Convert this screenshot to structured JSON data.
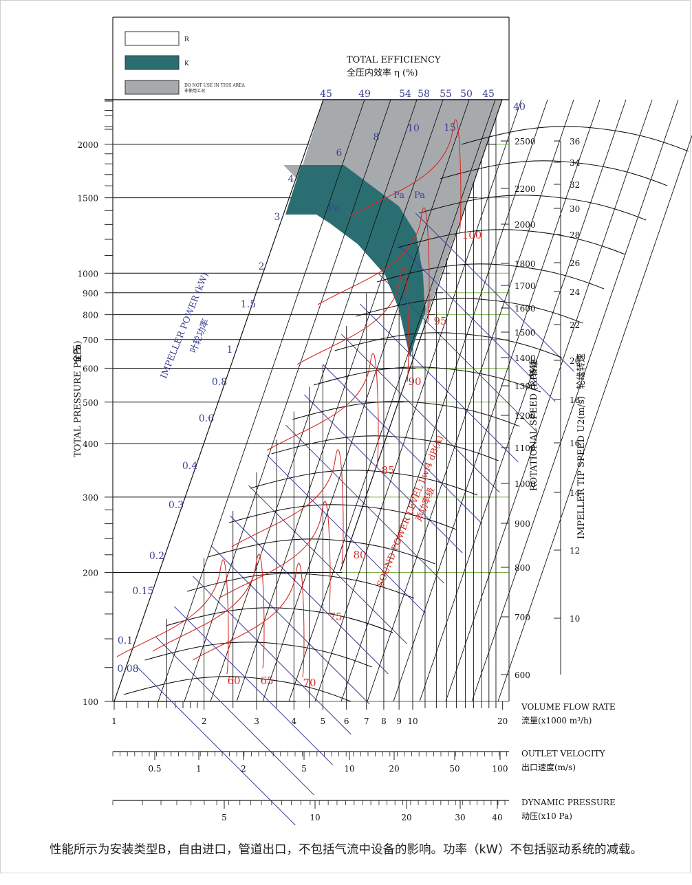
{
  "chart_data": {
    "type": "fan-performance-chart",
    "legend": [
      {
        "key": "R",
        "color": "#ffffff"
      },
      {
        "key": "K",
        "color": "#2b6e72"
      },
      {
        "key": "DO NOT USE IN THIS AREA",
        "sub": "非使用工况",
        "color": "#a7aaad"
      }
    ],
    "efficiency_title": "TOTAL EFFICIENCY",
    "efficiency_title_cn": "全压内效率 η (%)",
    "efficiency_labels": [
      "45",
      "49",
      "54",
      "58",
      "55",
      "50",
      "45",
      "40"
    ],
    "y_axis": {
      "label": "TOTAL PRESSURE Pt(Pa)",
      "label_cn": "全压",
      "scale": "log",
      "ticks": [
        100,
        200,
        300,
        400,
        500,
        600,
        700,
        800,
        900,
        1000,
        1500,
        2000
      ]
    },
    "x_axis": {
      "label": "VOLUME FLOW RATE",
      "label_cn": "流量(x1000 m³/h)",
      "scale": "log",
      "ticks": [
        1,
        2,
        3,
        4,
        5,
        6,
        7,
        8,
        9,
        10,
        20
      ]
    },
    "rpm_axis": {
      "label": "ROTATIONAL SPEED (RPM)",
      "label_cn": "转速",
      "ticks": [
        600,
        700,
        800,
        900,
        1000,
        1100,
        1200,
        1300,
        1400,
        1500,
        1600,
        1700,
        1800,
        2000,
        2200,
        2500
      ]
    },
    "tip_speed_axis": {
      "label": "IMPELLER TIP SPEED U2(m/s)",
      "label_cn": "轮缘转速",
      "ticks": [
        10,
        12,
        14,
        16,
        18,
        20,
        22,
        24,
        26,
        28,
        30,
        32,
        34,
        36
      ]
    },
    "power": {
      "label": "IMPELLER POWER (kW)",
      "label_cn": "叶轮功率",
      "values": [
        "0.08",
        "0.1",
        "0.15",
        "0.2",
        "0.3",
        "0.4",
        "0.6",
        "0.8",
        "1",
        "1.5",
        "2",
        "3",
        "4",
        "6",
        "8",
        "10",
        "15"
      ]
    },
    "sound": {
      "label": "SOUND POWER LEVEL Lwi4 dB(A)",
      "label_cn": "声功率级",
      "values": [
        "60",
        "65",
        "70",
        "75",
        "80",
        "85",
        "90",
        "95",
        "100"
      ]
    },
    "pa_marks": [
      "Pa",
      "Pa",
      "Pa"
    ],
    "outlet_velocity": {
      "label": "OUTLET VELOCITY",
      "label_cn": "出口速度(m/s)",
      "ticks": [
        "0.5",
        "1",
        "2",
        "5",
        "10",
        "20",
        "50",
        "100"
      ]
    },
    "dynamic_pressure": {
      "label": "DYNAMIC PRESSURE",
      "label_cn": "动压(x10 Pa)",
      "ticks": [
        "5",
        "10",
        "20",
        "30",
        "40"
      ]
    }
  },
  "caption": "性能所示为安装类型B，自由进口，管道出口，不包括气流中设备的影响。功率（kW）不包括驱动系统的减载。"
}
